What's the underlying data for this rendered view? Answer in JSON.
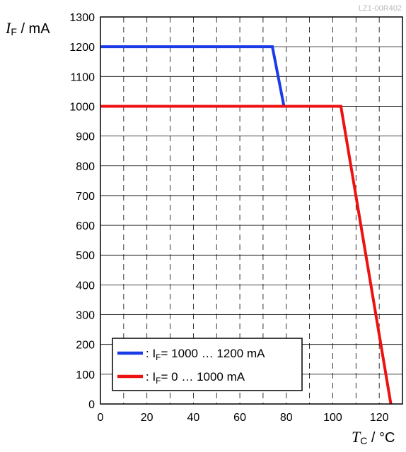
{
  "doc_id": "LZ1-00R402",
  "chart_data": {
    "type": "line",
    "title": "",
    "xlabel": {
      "symbol": "T",
      "subscript": "C",
      "unit": " / °C"
    },
    "ylabel": {
      "symbol": "I",
      "subscript": "F",
      "unit": " / mA"
    },
    "xlim": [
      0,
      130
    ],
    "ylim": [
      0,
      1300
    ],
    "xticks": [
      0,
      20,
      40,
      60,
      80,
      100,
      120
    ],
    "yticks": [
      0,
      100,
      200,
      300,
      400,
      500,
      600,
      700,
      800,
      900,
      1000,
      1100,
      1200,
      1300
    ],
    "grid": {
      "vertical_dashed_every": 10,
      "horizontal_solid_every": 100
    },
    "legend_position": "bottom-left",
    "series": [
      {
        "legend_prefix": ": I",
        "legend_sub": "F",
        "legend_suffix": "= 1000 … 1200 mA",
        "color": "#1a3be6",
        "points": [
          [
            0,
            1200
          ],
          [
            74,
            1200
          ],
          [
            79,
            1000
          ]
        ]
      },
      {
        "legend_prefix": ": I",
        "legend_sub": "F",
        "legend_suffix": "= 0 … 1000 mA",
        "color": "#ee1111",
        "points": [
          [
            0,
            1000
          ],
          [
            103.5,
            1000
          ],
          [
            125,
            0
          ]
        ]
      }
    ]
  }
}
